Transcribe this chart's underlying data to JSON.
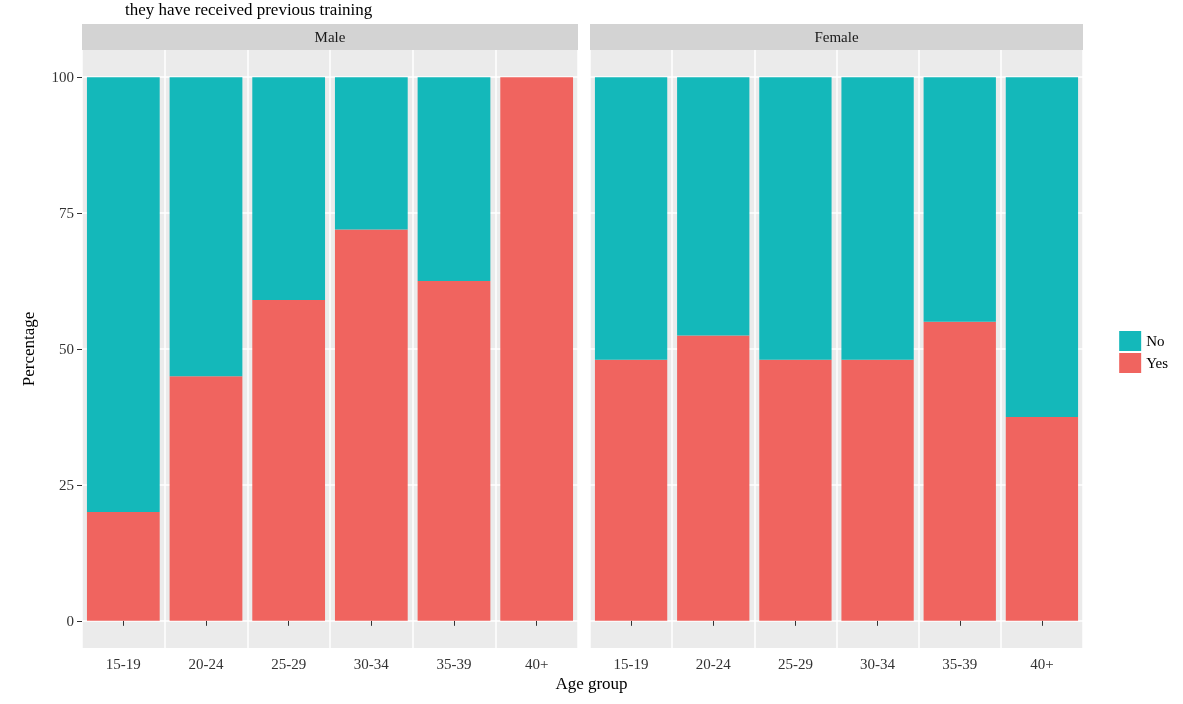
{
  "chart_data": [
    {
      "type": "bar",
      "title": "Male",
      "ylabel": "Percentage",
      "xlabel": "Age group",
      "annotations": [
        "they have received previous training"
      ],
      "categories": [
        "15-19",
        "20-24",
        "25-29",
        "30-34",
        "35-39",
        "40+"
      ],
      "stacked": true,
      "ylim": [
        -5,
        105
      ],
      "yticks": [
        0,
        25,
        50,
        75,
        100
      ],
      "grid": true,
      "legend": false,
      "series": [
        {
          "color": "#f0645f",
          "values": [
            20,
            45,
            59,
            72,
            62.5,
            100
          ]
        },
        {
          "color": "#14b8ba",
          "values": [
            80,
            55,
            41,
            28,
            37.5,
            0
          ]
        }
      ]
    },
    {
      "type": "bar",
      "title": "Female",
      "categories": [
        "15-19",
        "20-24",
        "25-29",
        "30-34",
        "35-39",
        "40+"
      ],
      "stacked": true,
      "ylim": [
        -5,
        105
      ],
      "yticks": [
        0,
        25,
        50,
        75,
        100
      ],
      "grid": true,
      "legend": "right",
      "tick_labels": "x",
      "series": [
        {
          "name": "Yes",
          "color": "#f0645f",
          "values": [
            48,
            52.5,
            48,
            48,
            55,
            37.5
          ]
        },
        {
          "name": "No",
          "color": "#14b8ba",
          "values": [
            52,
            47.5,
            52,
            52,
            45,
            62.5
          ]
        }
      ]
    }
  ]
}
